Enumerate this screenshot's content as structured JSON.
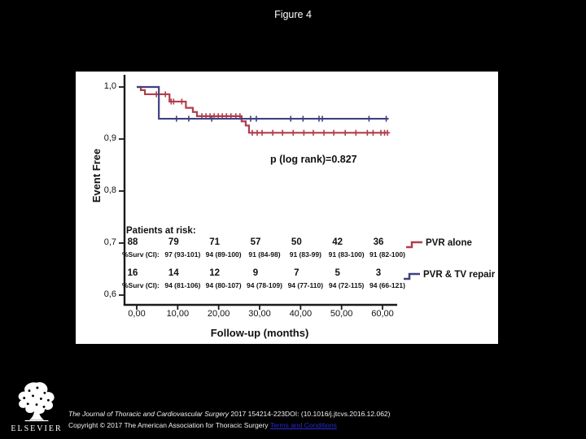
{
  "header": {
    "title": "Figure 4"
  },
  "chart_data": {
    "type": "line",
    "subtype": "kaplan-meier-step",
    "title": "",
    "xlabel": "Follow-up (months)",
    "ylabel": "Event Free",
    "p_value_label": "p (log rank)=0.827",
    "xlim": [
      0,
      63.6
    ],
    "ylim": [
      0.58,
      1.02
    ],
    "grid": false,
    "legend_position": "right-middle",
    "x_ticks": [
      {
        "value": 0,
        "label": "0,00"
      },
      {
        "value": 10,
        "label": "10,00"
      },
      {
        "value": 20,
        "label": "20,00"
      },
      {
        "value": 30,
        "label": "30,00"
      },
      {
        "value": 40,
        "label": "40,00"
      },
      {
        "value": 50,
        "label": "50,00"
      },
      {
        "value": 60,
        "label": "60,00"
      }
    ],
    "y_ticks": [
      {
        "value": 1.0,
        "label": "1,0"
      },
      {
        "value": 0.9,
        "label": "0,9"
      },
      {
        "value": 0.8,
        "label": "0,8"
      },
      {
        "value": 0.7,
        "label": "0,7"
      },
      {
        "value": 0.6,
        "label": "0,6"
      }
    ],
    "series": [
      {
        "name": "PVR alone",
        "color": "#b03e4b",
        "end_x": 61.3,
        "steps": [
          [
            0,
            1.0
          ],
          [
            1,
            0.994
          ],
          [
            2,
            0.986
          ],
          [
            8,
            0.972
          ],
          [
            12,
            0.96
          ],
          [
            13.7,
            0.952
          ],
          [
            14.7,
            0.944
          ],
          [
            25.6,
            0.934
          ],
          [
            26.6,
            0.926
          ],
          [
            27.4,
            0.912
          ]
        ],
        "censors": [
          [
            4.8,
            0.986
          ],
          [
            7,
            0.986
          ],
          [
            8.4,
            0.972
          ],
          [
            9,
            0.972
          ],
          [
            11,
            0.972
          ],
          [
            15.9,
            0.944
          ],
          [
            16.9,
            0.944
          ],
          [
            17.9,
            0.944
          ],
          [
            18.9,
            0.944
          ],
          [
            19.9,
            0.944
          ],
          [
            20.9,
            0.944
          ],
          [
            21.9,
            0.944
          ],
          [
            23,
            0.944
          ],
          [
            24.2,
            0.944
          ],
          [
            25.2,
            0.944
          ],
          [
            28.2,
            0.912
          ],
          [
            29.4,
            0.912
          ],
          [
            30.6,
            0.912
          ],
          [
            33.2,
            0.912
          ],
          [
            35.6,
            0.912
          ],
          [
            38.2,
            0.912
          ],
          [
            40.8,
            0.912
          ],
          [
            43.1,
            0.912
          ],
          [
            45.7,
            0.912
          ],
          [
            48.1,
            0.912
          ],
          [
            50.9,
            0.912
          ],
          [
            53.5,
            0.912
          ],
          [
            56.3,
            0.912
          ],
          [
            57.7,
            0.912
          ],
          [
            59.6,
            0.912
          ],
          [
            60.5,
            0.912
          ],
          [
            61.2,
            0.912
          ]
        ]
      },
      {
        "name": "PVR & TV repair",
        "color": "#3e4180",
        "end_x": 61.3,
        "steps": [
          [
            0,
            1.0
          ],
          [
            5.4,
            0.939
          ]
        ],
        "censors": [
          [
            9.7,
            0.939
          ],
          [
            12.7,
            0.939
          ],
          [
            18.3,
            0.939
          ],
          [
            27.8,
            0.939
          ],
          [
            29.2,
            0.939
          ],
          [
            37.6,
            0.939
          ],
          [
            40.6,
            0.939
          ],
          [
            44.5,
            0.939
          ],
          [
            45.3,
            0.939
          ],
          [
            56.7,
            0.939
          ],
          [
            60.9,
            0.939
          ]
        ]
      }
    ]
  },
  "risk_table": {
    "heading": "Patients at risk:",
    "rows": [
      {
        "group": "PVR alone",
        "counts": [
          "88",
          "79",
          "71",
          "57",
          "50",
          "42",
          "36"
        ],
        "surv_label": "%Surv (CI):",
        "surv_values": [
          "97 (93-101)",
          "94 (89-100)",
          "91 (84-98)",
          "91 (83-99)",
          "91 (83-100)",
          "91 (82-100)"
        ]
      },
      {
        "group": "PVR & TV repair",
        "counts": [
          "16",
          "14",
          "12",
          "9",
          "7",
          "5",
          "3"
        ],
        "surv_label": "%Surv (CI):",
        "surv_values": [
          "94 (81-106)",
          "94 (80-107)",
          "94 (78-109)",
          "94 (77-110)",
          "94 (72-115)",
          "94 (66-121)"
        ]
      }
    ]
  },
  "legend": {
    "items": [
      {
        "label": "PVR alone",
        "color": "#b03e4b"
      },
      {
        "label": "PVR & TV repair",
        "color": "#3e4180"
      }
    ]
  },
  "footer": {
    "logo_text": "ELSEVIER",
    "citation_journal": "The Journal of Thoracic and Cardiovascular Surgery",
    "citation_rest": " 2017 154214-223DOI: (10.1016/j.jtcvs.2016.12.062)",
    "copyright_text": "Copyright © 2017 The American Association for Thoracic Surgery ",
    "terms_link": "Terms and Conditions"
  },
  "colors": {
    "background": "#000000",
    "panel": "#ffffff",
    "axis": "#1a1a1a",
    "link": "#2a2ad0"
  }
}
